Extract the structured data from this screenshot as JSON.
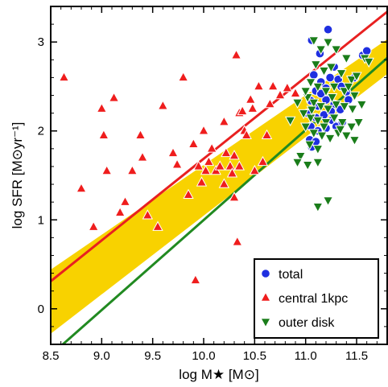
{
  "chart_data": {
    "type": "scatter",
    "xlabel": "log M★ [M⊙]",
    "ylabel": "log SFR [M⊙yr⁻¹]",
    "xlim": [
      8.5,
      11.8
    ],
    "ylim": [
      -0.4,
      3.4
    ],
    "xticks": [
      "8.5",
      "9.0",
      "9.5",
      "10.0",
      "10.5",
      "11.0",
      "11.5"
    ],
    "xtick_values": [
      8.5,
      9.0,
      9.5,
      10.0,
      10.5,
      11.0,
      11.5
    ],
    "yticks": [
      "0",
      "1",
      "2",
      "3"
    ],
    "ytick_values": [
      0,
      1,
      2,
      3
    ],
    "legend_placement": "bottom-right",
    "colors": {
      "total": "#1f2fe0",
      "central": "#ef1d1d",
      "outer": "#1a7d1a",
      "band": "#f8d200",
      "red_line": "#e82020",
      "green_line": "#218a21"
    },
    "band": {
      "lower": [
        [
          8.5,
          -0.28
        ],
        [
          11.8,
          2.64
        ]
      ],
      "upper": [
        [
          8.5,
          0.44
        ],
        [
          11.8,
          3.03
        ]
      ]
    },
    "lines": [
      {
        "color": "red",
        "points": [
          [
            8.5,
            0.31
          ],
          [
            11.8,
            3.34
          ]
        ]
      },
      {
        "color": "green",
        "points": [
          [
            8.5,
            -0.52
          ],
          [
            11.8,
            2.82
          ]
        ]
      }
    ],
    "series": [
      {
        "name": "total",
        "marker": "circle",
        "points": [
          [
            11.06,
            3.02
          ],
          [
            11.22,
            3.14
          ],
          [
            11.14,
            2.87
          ],
          [
            11.28,
            2.72
          ],
          [
            11.08,
            2.63
          ],
          [
            11.15,
            2.55
          ],
          [
            11.2,
            2.48
          ],
          [
            11.1,
            2.45
          ],
          [
            11.24,
            2.6
          ],
          [
            11.32,
            2.58
          ],
          [
            11.35,
            2.5
          ],
          [
            11.4,
            2.44
          ],
          [
            11.05,
            2.34
          ],
          [
            11.12,
            2.28
          ],
          [
            11.2,
            2.35
          ],
          [
            11.28,
            2.3
          ],
          [
            11.02,
            2.2
          ],
          [
            11.1,
            2.15
          ],
          [
            11.18,
            2.18
          ],
          [
            11.26,
            2.12
          ],
          [
            11.34,
            2.24
          ],
          [
            11.42,
            2.35
          ],
          [
            11.05,
            2.05
          ],
          [
            11.12,
            2.0
          ],
          [
            11.2,
            2.03
          ],
          [
            11.3,
            2.05
          ],
          [
            11.36,
            2.1
          ],
          [
            11.04,
            1.9
          ],
          [
            11.06,
            1.82
          ],
          [
            11.1,
            1.88
          ],
          [
            11.56,
            2.85
          ],
          [
            11.6,
            2.9
          ],
          [
            11.48,
            2.6
          ],
          [
            11.15,
            2.42
          ],
          [
            11.25,
            2.22
          ]
        ]
      },
      {
        "name": "central 1kpc",
        "marker": "triangle-up",
        "points": [
          [
            8.63,
            2.6
          ],
          [
            8.8,
            1.35
          ],
          [
            8.92,
            0.92
          ],
          [
            9.0,
            2.25
          ],
          [
            9.02,
            1.95
          ],
          [
            9.05,
            1.55
          ],
          [
            9.12,
            2.37
          ],
          [
            9.18,
            1.08
          ],
          [
            9.23,
            1.2
          ],
          [
            9.3,
            1.55
          ],
          [
            9.38,
            1.95
          ],
          [
            9.4,
            1.7
          ],
          [
            9.45,
            1.05
          ],
          [
            9.55,
            0.92
          ],
          [
            9.6,
            2.28
          ],
          [
            9.7,
            1.75
          ],
          [
            9.74,
            1.62
          ],
          [
            9.8,
            2.6
          ],
          [
            9.85,
            1.28
          ],
          [
            9.9,
            1.85
          ],
          [
            9.95,
            1.6
          ],
          [
            9.98,
            1.42
          ],
          [
            10.0,
            2.0
          ],
          [
            10.02,
            1.55
          ],
          [
            10.05,
            1.65
          ],
          [
            10.08,
            1.8
          ],
          [
            10.12,
            1.55
          ],
          [
            10.16,
            1.6
          ],
          [
            10.2,
            2.1
          ],
          [
            10.22,
            1.75
          ],
          [
            10.26,
            1.6
          ],
          [
            10.28,
            1.52
          ],
          [
            10.3,
            1.72
          ],
          [
            10.32,
            2.85
          ],
          [
            10.35,
            2.2
          ],
          [
            10.38,
            2.22
          ],
          [
            10.4,
            2.0
          ],
          [
            10.42,
            1.95
          ],
          [
            10.46,
            2.35
          ],
          [
            10.5,
            1.55
          ],
          [
            10.54,
            2.5
          ],
          [
            10.58,
            1.65
          ],
          [
            10.62,
            1.95
          ],
          [
            10.65,
            2.3
          ],
          [
            10.68,
            2.5
          ],
          [
            10.75,
            2.4
          ],
          [
            10.82,
            2.48
          ],
          [
            10.9,
            2.42
          ],
          [
            10.3,
            1.25
          ],
          [
            10.2,
            1.4
          ],
          [
            10.33,
            0.75
          ],
          [
            9.92,
            0.32
          ],
          [
            10.35,
            1.6
          ],
          [
            10.48,
            2.25
          ]
        ]
      },
      {
        "name": "outer disk",
        "marker": "triangle-down",
        "points": [
          [
            11.08,
            3.02
          ],
          [
            11.15,
            2.92
          ],
          [
            11.22,
            3.0
          ],
          [
            11.3,
            2.92
          ],
          [
            11.4,
            2.82
          ],
          [
            11.1,
            2.75
          ],
          [
            11.18,
            2.68
          ],
          [
            11.25,
            2.72
          ],
          [
            11.35,
            2.65
          ],
          [
            11.45,
            2.58
          ],
          [
            11.05,
            2.55
          ],
          [
            11.12,
            2.5
          ],
          [
            11.2,
            2.45
          ],
          [
            11.28,
            2.5
          ],
          [
            11.38,
            2.45
          ],
          [
            11.48,
            2.4
          ],
          [
            11.02,
            2.38
          ],
          [
            11.08,
            2.32
          ],
          [
            11.15,
            2.28
          ],
          [
            11.22,
            2.25
          ],
          [
            11.3,
            2.3
          ],
          [
            11.38,
            2.28
          ],
          [
            11.46,
            2.25
          ],
          [
            11.55,
            2.3
          ],
          [
            10.98,
            2.2
          ],
          [
            11.05,
            2.15
          ],
          [
            11.12,
            2.12
          ],
          [
            11.2,
            2.1
          ],
          [
            11.28,
            2.15
          ],
          [
            11.36,
            2.1
          ],
          [
            11.45,
            2.05
          ],
          [
            11.52,
            2.1
          ],
          [
            11.0,
            2.05
          ],
          [
            11.08,
            1.98
          ],
          [
            11.16,
            1.95
          ],
          [
            11.24,
            1.92
          ],
          [
            11.32,
            1.98
          ],
          [
            11.4,
            1.95
          ],
          [
            11.48,
            1.9
          ],
          [
            11.04,
            1.85
          ],
          [
            11.12,
            1.8
          ],
          [
            10.85,
            2.12
          ],
          [
            10.95,
            1.72
          ],
          [
            10.92,
            1.65
          ],
          [
            11.02,
            1.62
          ],
          [
            11.12,
            1.65
          ],
          [
            11.22,
            1.22
          ],
          [
            11.12,
            1.15
          ],
          [
            11.58,
            2.82
          ],
          [
            11.62,
            2.78
          ],
          [
            10.92,
            2.32
          ],
          [
            11.0,
            2.45
          ],
          [
            11.42,
            2.5
          ],
          [
            11.34,
            2.02
          ],
          [
            11.18,
            2.05
          ],
          [
            11.06,
            2.24
          ],
          [
            11.5,
            2.62
          ],
          [
            11.26,
            2.38
          ]
        ]
      }
    ]
  }
}
